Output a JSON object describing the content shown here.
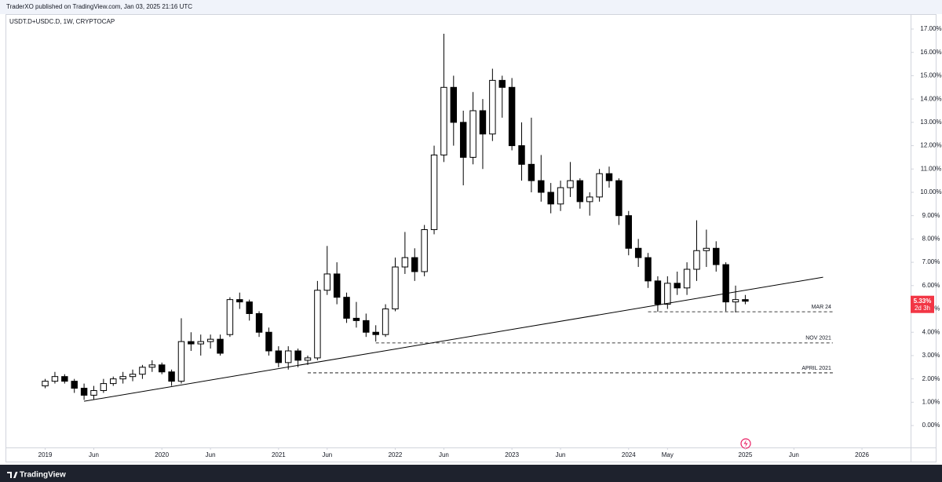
{
  "header": "TraderXO published on TradingView.com, Jan 03, 2025 21:16 UTC",
  "brand": "TradingView",
  "chart_data": {
    "type": "candlestick",
    "symbol": "USDT.D+USDC.D, 1W, CRYPTOCAP",
    "xlim": [
      "2018-09",
      "2026-06"
    ],
    "ylim": [
      -0.94,
      17.64
    ],
    "xticks": [
      {
        "value": "2019-01",
        "label": "2019"
      },
      {
        "value": "2019-06",
        "label": "Jun"
      },
      {
        "value": "2020-01",
        "label": "2020"
      },
      {
        "value": "2020-06",
        "label": "Jun"
      },
      {
        "value": "2021-01",
        "label": "2021"
      },
      {
        "value": "2021-06",
        "label": "Jun"
      },
      {
        "value": "2022-01",
        "label": "2022"
      },
      {
        "value": "2022-06",
        "label": "Jun"
      },
      {
        "value": "2023-01",
        "label": "2023"
      },
      {
        "value": "2023-06",
        "label": "Jun"
      },
      {
        "value": "2024-01",
        "label": "2024"
      },
      {
        "value": "2024-05",
        "label": "May"
      },
      {
        "value": "2025-01",
        "label": "2025"
      },
      {
        "value": "2025-06",
        "label": "Jun"
      },
      {
        "value": "2026-01",
        "label": "2026"
      }
    ],
    "yticks": [
      {
        "value": 0,
        "label": "0.00%"
      },
      {
        "value": 1,
        "label": "1.00%"
      },
      {
        "value": 2,
        "label": "2.00%"
      },
      {
        "value": 3,
        "label": "3.00%"
      },
      {
        "value": 4,
        "label": "4.00%"
      },
      {
        "value": 5,
        "label": "5.00%"
      },
      {
        "value": 6,
        "label": "6.00%"
      },
      {
        "value": 7,
        "label": "7.00%"
      },
      {
        "value": 8,
        "label": "8.00%"
      },
      {
        "value": 9,
        "label": "9.00%"
      },
      {
        "value": 10,
        "label": "10.00%"
      },
      {
        "value": 11,
        "label": "11.00%"
      },
      {
        "value": 12,
        "label": "12.00%"
      },
      {
        "value": 13,
        "label": "13.00%"
      },
      {
        "value": 14,
        "label": "14.00%"
      },
      {
        "value": 15,
        "label": "15.00%"
      },
      {
        "value": 16,
        "label": "16.00%"
      },
      {
        "value": 17,
        "label": "17.00%"
      }
    ],
    "grid": false,
    "up_color": "#ffffff",
    "down_color": "#000000",
    "x": [
      "2019-01",
      "2019-02",
      "2019-03",
      "2019-04",
      "2019-05",
      "2019-06",
      "2019-07",
      "2019-08",
      "2019-09",
      "2019-10",
      "2019-11",
      "2019-12",
      "2020-01",
      "2020-02",
      "2020-03",
      "2020-04",
      "2020-05",
      "2020-06",
      "2020-07",
      "2020-08",
      "2020-09",
      "2020-10",
      "2020-11",
      "2020-12",
      "2021-01",
      "2021-02",
      "2021-03",
      "2021-04",
      "2021-05",
      "2021-06",
      "2021-07",
      "2021-08",
      "2021-09",
      "2021-10",
      "2021-11",
      "2021-12",
      "2022-01",
      "2022-02",
      "2022-03",
      "2022-04",
      "2022-05",
      "2022-06",
      "2022-07",
      "2022-08",
      "2022-09",
      "2022-10",
      "2022-11",
      "2022-12",
      "2023-01",
      "2023-02",
      "2023-03",
      "2023-04",
      "2023-05",
      "2023-06",
      "2023-07",
      "2023-08",
      "2023-09",
      "2023-10",
      "2023-11",
      "2023-12",
      "2024-01",
      "2024-02",
      "2024-03",
      "2024-04",
      "2024-05",
      "2024-06",
      "2024-07",
      "2024-08",
      "2024-09",
      "2024-10",
      "2024-11",
      "2024-12",
      "2025-01"
    ],
    "open": [
      1.7,
      1.9,
      2.1,
      1.9,
      1.6,
      1.3,
      1.5,
      1.8,
      2.0,
      2.1,
      2.2,
      2.5,
      2.6,
      2.3,
      1.9,
      3.6,
      3.5,
      3.6,
      3.7,
      3.9,
      5.4,
      5.3,
      4.8,
      4.0,
      3.2,
      2.7,
      3.2,
      2.8,
      2.9,
      5.8,
      6.5,
      5.5,
      4.6,
      4.5,
      4.0,
      3.9,
      5.0,
      6.8,
      7.2,
      6.6,
      8.4,
      11.6,
      14.5,
      13.0,
      11.5,
      13.5,
      12.5,
      14.8,
      14.5,
      12.0,
      11.2,
      10.5,
      10.0,
      9.5,
      10.2,
      10.5,
      9.6,
      9.8,
      10.8,
      10.5,
      9.0,
      7.6,
      7.2,
      6.2,
      5.2,
      6.1,
      5.9,
      6.7,
      7.5,
      7.6,
      6.9,
      5.3,
      5.4
    ],
    "high": [
      2.0,
      2.3,
      2.2,
      2.0,
      1.8,
      1.7,
      2.0,
      2.1,
      2.3,
      2.4,
      2.6,
      2.8,
      2.7,
      2.4,
      4.6,
      4.0,
      3.9,
      3.9,
      3.9,
      5.5,
      5.7,
      5.4,
      4.9,
      4.2,
      3.4,
      3.4,
      3.3,
      3.0,
      6.2,
      7.7,
      7.0,
      5.7,
      5.3,
      4.8,
      4.3,
      5.2,
      7.2,
      8.3,
      7.6,
      8.6,
      12.0,
      16.8,
      15.0,
      13.5,
      14.3,
      14.0,
      15.3,
      15.0,
      14.9,
      13.0,
      13.2,
      11.6,
      10.4,
      10.5,
      11.3,
      10.6,
      10.0,
      11.0,
      11.1,
      10.6,
      9.2,
      8.0,
      7.4,
      6.4,
      6.4,
      6.6,
      7.0,
      8.8,
      8.4,
      7.9,
      7.0,
      6.0,
      5.6
    ],
    "low": [
      1.6,
      1.8,
      1.8,
      1.4,
      1.1,
      1.1,
      1.4,
      1.7,
      1.8,
      1.9,
      2.0,
      2.3,
      2.2,
      1.7,
      1.8,
      3.2,
      3.0,
      3.3,
      3.0,
      3.8,
      5.0,
      4.5,
      3.8,
      3.0,
      2.5,
      2.4,
      2.5,
      2.6,
      2.8,
      5.6,
      5.2,
      4.4,
      4.2,
      3.8,
      3.6,
      3.8,
      4.9,
      6.5,
      6.2,
      6.4,
      8.2,
      11.3,
      12.0,
      10.3,
      11.2,
      11.0,
      12.2,
      13.2,
      11.8,
      10.5,
      10.0,
      9.6,
      9.1,
      9.2,
      9.8,
      9.3,
      9.0,
      9.6,
      10.2,
      8.6,
      7.3,
      6.8,
      5.9,
      4.88,
      5.0,
      5.6,
      5.6,
      6.2,
      6.8,
      6.6,
      4.9,
      4.85,
      5.2
    ],
    "close": [
      1.9,
      2.1,
      1.9,
      1.6,
      1.3,
      1.5,
      1.8,
      2.0,
      2.1,
      2.2,
      2.5,
      2.6,
      2.3,
      1.9,
      3.6,
      3.5,
      3.6,
      3.7,
      3.1,
      5.4,
      5.3,
      4.8,
      4.0,
      3.2,
      2.7,
      3.2,
      2.8,
      2.9,
      5.8,
      6.5,
      5.5,
      4.6,
      4.5,
      4.0,
      3.9,
      5.0,
      6.8,
      7.2,
      6.6,
      8.4,
      11.6,
      14.5,
      13.0,
      11.5,
      13.5,
      12.5,
      14.8,
      14.5,
      12.0,
      11.2,
      10.5,
      10.0,
      9.5,
      10.2,
      10.5,
      9.6,
      9.8,
      10.8,
      10.5,
      9.0,
      7.6,
      7.2,
      6.2,
      5.2,
      6.1,
      5.9,
      6.7,
      7.5,
      7.6,
      6.9,
      5.3,
      5.4,
      5.33
    ],
    "trendline": {
      "x": [
        "2019-05",
        "2025-09"
      ],
      "y": [
        1.04,
        6.36
      ]
    },
    "levels": [
      {
        "label": "MAR 24",
        "value": 4.88,
        "x": [
          "2024-03",
          "2025-10"
        ]
      },
      {
        "label": "NOV 2021",
        "value": 3.54,
        "x": [
          "2021-11",
          "2025-10"
        ]
      },
      {
        "label": "APRIL 2021",
        "value": 2.26,
        "x": [
          "2021-04",
          "2025-10"
        ]
      }
    ],
    "last_price": {
      "value": 5.33,
      "label": "5.33%"
    },
    "countdown": "2d 3h"
  }
}
